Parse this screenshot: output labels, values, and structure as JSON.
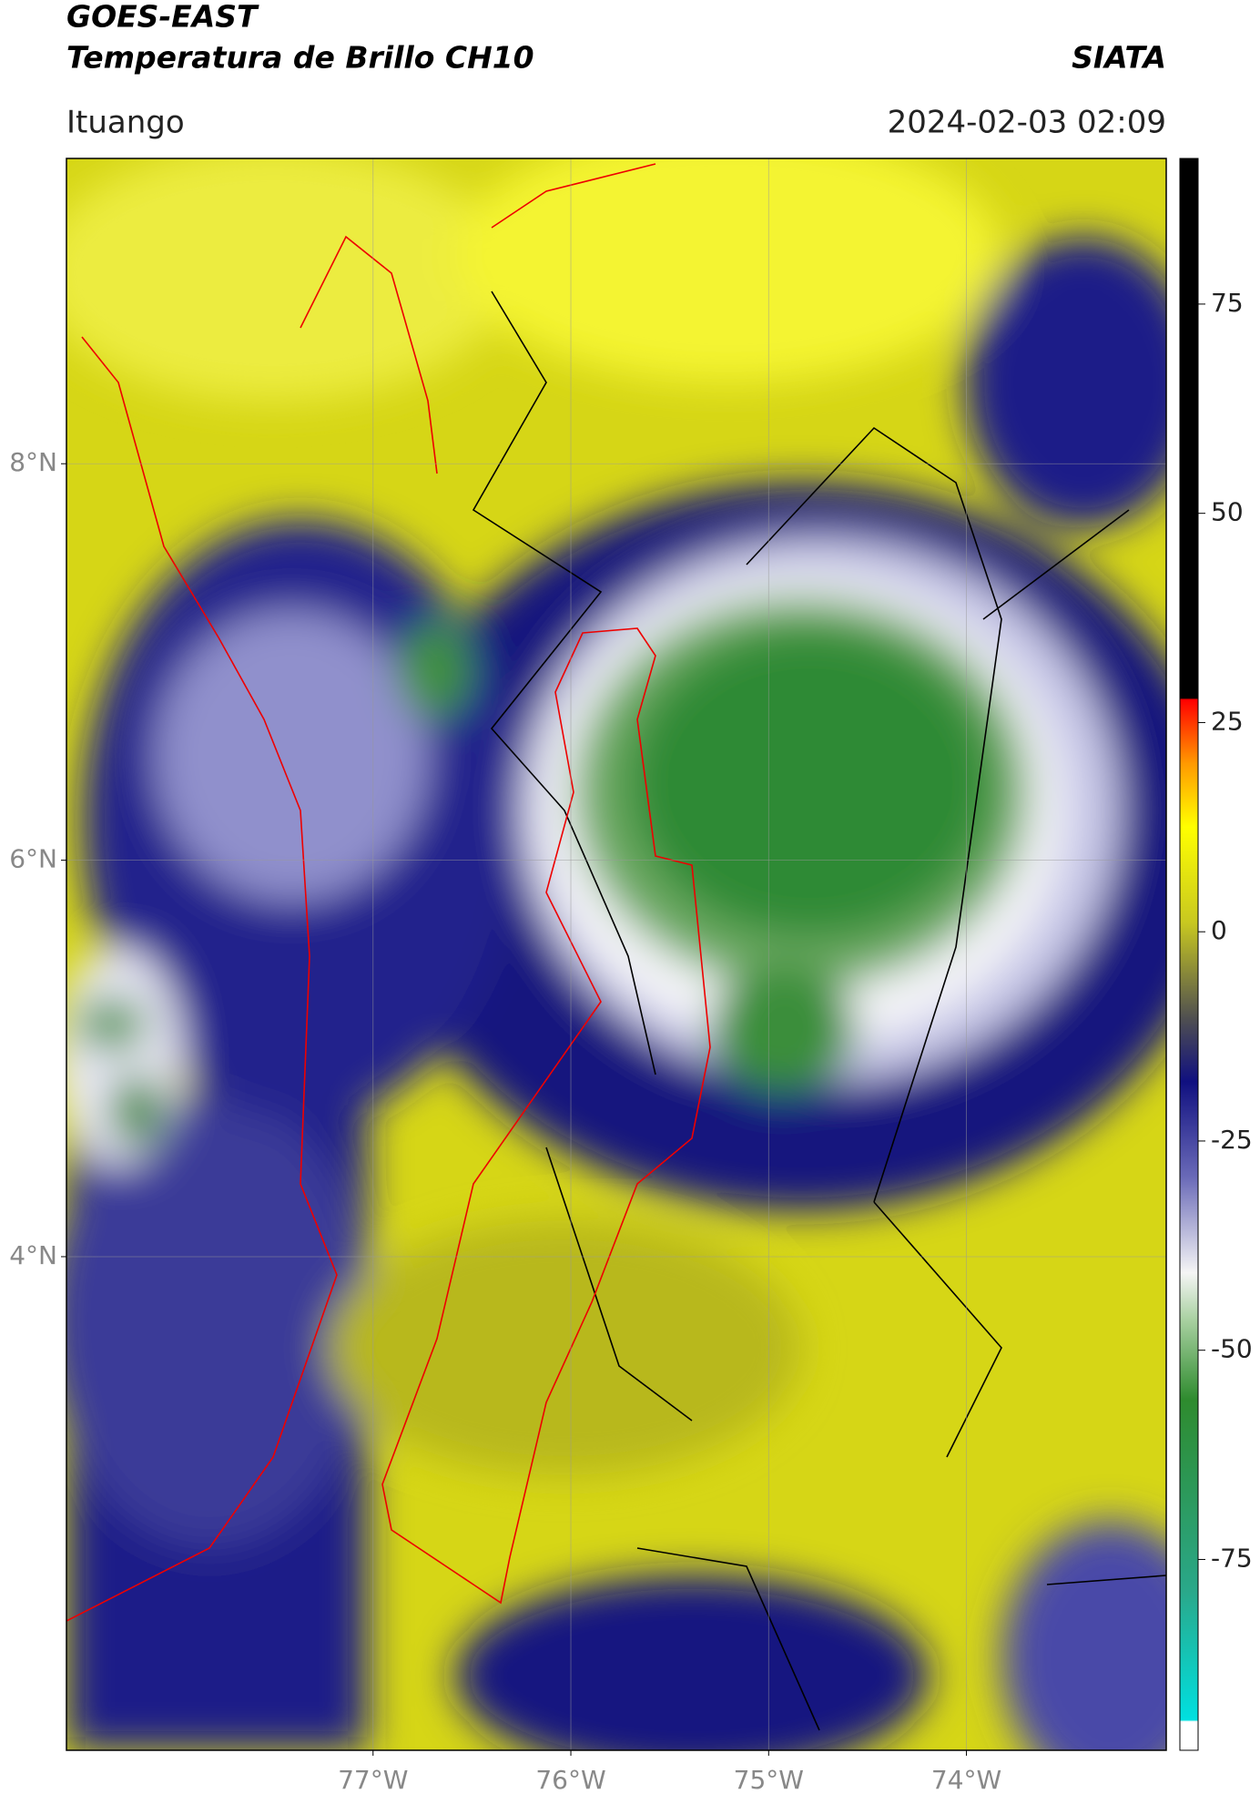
{
  "header": {
    "title": "GOES-EAST",
    "subtitle": "Temperatura de Brillo CH10",
    "brand": "SIATA",
    "location": "Ituango",
    "datetime": "2024-02-03 02:09"
  },
  "map": {
    "xlim": [
      -78.55,
      -72.99
    ],
    "ylim": [
      1.51,
      9.54
    ],
    "xticks": [
      {
        "value": -77,
        "label": "77°W"
      },
      {
        "value": -76,
        "label": "76°W"
      },
      {
        "value": -75,
        "label": "75°W"
      },
      {
        "value": -74,
        "label": "74°W"
      }
    ],
    "yticks": [
      {
        "value": 8,
        "label": "8°N"
      },
      {
        "value": 6,
        "label": "6°N"
      },
      {
        "value": 4,
        "label": "4°N"
      }
    ],
    "grid": true
  },
  "colorbar": {
    "lim": [
      -97.8,
      92.4
    ],
    "ticks": [
      75,
      50,
      25,
      0,
      -25,
      -50,
      -75
    ]
  }
}
